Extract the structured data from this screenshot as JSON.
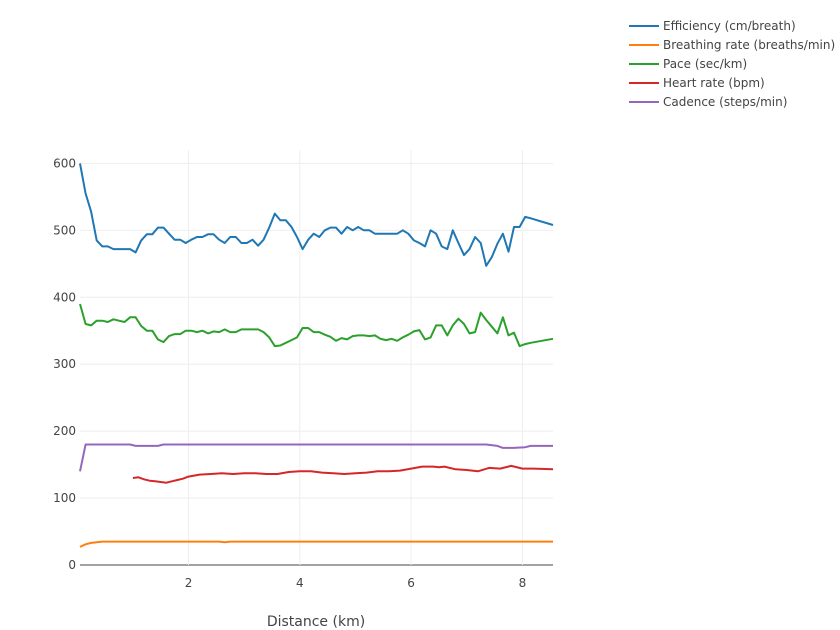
{
  "chart_data": {
    "type": "line",
    "title": "",
    "xlabel": "Distance (km)",
    "ylabel": "",
    "xlim": [
      0.05,
      8.55
    ],
    "ylim": [
      0,
      620
    ],
    "xticks": [
      2,
      4,
      6,
      8
    ],
    "yticks": [
      0,
      100,
      200,
      300,
      400,
      500,
      600
    ],
    "grid": true,
    "legend_position": "top-right",
    "series": [
      {
        "name": "Efficiency (cm/breath)",
        "color": "#1f77b4",
        "x": [
          0.05,
          0.15,
          0.25,
          0.35,
          0.45,
          0.55,
          0.65,
          0.75,
          0.85,
          0.95,
          1.05,
          1.15,
          1.25,
          1.35,
          1.45,
          1.55,
          1.65,
          1.75,
          1.85,
          1.95,
          2.05,
          2.15,
          2.25,
          2.35,
          2.45,
          2.55,
          2.65,
          2.75,
          2.85,
          2.95,
          3.05,
          3.15,
          3.25,
          3.35,
          3.45,
          3.55,
          3.65,
          3.75,
          3.85,
          3.95,
          4.05,
          4.15,
          4.25,
          4.35,
          4.45,
          4.55,
          4.65,
          4.75,
          4.85,
          4.95,
          5.05,
          5.15,
          5.25,
          5.35,
          5.45,
          5.55,
          5.65,
          5.75,
          5.85,
          5.95,
          6.05,
          6.15,
          6.25,
          6.35,
          6.45,
          6.55,
          6.65,
          6.75,
          6.85,
          6.95,
          7.05,
          7.15,
          7.25,
          7.35,
          7.45,
          7.55,
          7.65,
          7.75,
          7.85,
          7.95,
          8.05,
          8.15,
          8.55
        ],
        "y": [
          600,
          555,
          528,
          485,
          476,
          476,
          472,
          472,
          472,
          472,
          467,
          485,
          494,
          494,
          504,
          504,
          495,
          486,
          486,
          481,
          486,
          490,
          490,
          494,
          494,
          486,
          481,
          490,
          490,
          481,
          481,
          486,
          477,
          486,
          504,
          525,
          515,
          515,
          505,
          490,
          472,
          486,
          495,
          490,
          500,
          504,
          504,
          495,
          505,
          500,
          505,
          500,
          500,
          495,
          495,
          495,
          495,
          495,
          500,
          495,
          485,
          481,
          476,
          500,
          495,
          476,
          472,
          500,
          481,
          463,
          472,
          490,
          481,
          447,
          460,
          480,
          495,
          468,
          505,
          505,
          520,
          518,
          508
        ]
      },
      {
        "name": "Breathing rate (breaths/min)",
        "color": "#ff7f0e",
        "x": [
          0.05,
          0.15,
          0.25,
          0.35,
          0.45,
          0.55,
          1.05,
          1.55,
          2.05,
          2.55,
          2.65,
          2.75,
          3.05,
          3.55,
          4.05,
          4.55,
          5.05,
          5.55,
          6.05,
          6.55,
          7.05,
          7.55,
          8.05,
          8.55
        ],
        "y": [
          27,
          31,
          33,
          34,
          35,
          35,
          35,
          35,
          35,
          35,
          34,
          35,
          35,
          35,
          35,
          35,
          35,
          35,
          35,
          35,
          35,
          35,
          35,
          35
        ]
      },
      {
        "name": "Pace (sec/km)",
        "color": "#2ca02c",
        "x": [
          0.05,
          0.15,
          0.25,
          0.35,
          0.45,
          0.55,
          0.65,
          0.75,
          0.85,
          0.95,
          1.05,
          1.15,
          1.25,
          1.35,
          1.45,
          1.55,
          1.65,
          1.75,
          1.85,
          1.95,
          2.05,
          2.15,
          2.25,
          2.35,
          2.45,
          2.55,
          2.65,
          2.75,
          2.85,
          2.95,
          3.05,
          3.15,
          3.25,
          3.35,
          3.45,
          3.55,
          3.65,
          3.75,
          3.85,
          3.95,
          4.05,
          4.15,
          4.25,
          4.35,
          4.45,
          4.55,
          4.65,
          4.75,
          4.85,
          4.95,
          5.05,
          5.15,
          5.25,
          5.35,
          5.45,
          5.55,
          5.65,
          5.75,
          5.85,
          5.95,
          6.05,
          6.15,
          6.25,
          6.35,
          6.45,
          6.55,
          6.65,
          6.75,
          6.85,
          6.95,
          7.05,
          7.15,
          7.25,
          7.35,
          7.45,
          7.55,
          7.65,
          7.75,
          7.85,
          7.95,
          8.05,
          8.15,
          8.55
        ],
        "y": [
          390,
          360,
          358,
          365,
          365,
          363,
          367,
          365,
          363,
          370,
          370,
          357,
          350,
          350,
          337,
          333,
          342,
          345,
          345,
          350,
          350,
          348,
          350,
          346,
          349,
          348,
          352,
          348,
          348,
          352,
          352,
          352,
          352,
          348,
          340,
          327,
          328,
          332,
          336,
          340,
          354,
          354,
          348,
          348,
          344,
          341,
          335,
          339,
          337,
          342,
          343,
          343,
          342,
          343,
          338,
          336,
          338,
          335,
          340,
          344,
          349,
          351,
          337,
          340,
          358,
          358,
          343,
          358,
          368,
          360,
          346,
          348,
          377,
          366,
          356,
          346,
          370,
          343,
          347,
          327,
          330,
          332,
          338
        ]
      },
      {
        "name": "Heart rate (bpm)",
        "color": "#d62728",
        "x": [
          1.0,
          1.1,
          1.2,
          1.3,
          1.4,
          1.5,
          1.6,
          1.7,
          1.8,
          1.9,
          2.0,
          2.2,
          2.4,
          2.6,
          2.8,
          3.0,
          3.2,
          3.4,
          3.6,
          3.8,
          4.0,
          4.2,
          4.4,
          4.6,
          4.8,
          5.0,
          5.2,
          5.4,
          5.6,
          5.8,
          6.0,
          6.2,
          6.4,
          6.5,
          6.6,
          6.8,
          7.0,
          7.2,
          7.4,
          7.6,
          7.8,
          8.0,
          8.2,
          8.55
        ],
        "y": [
          130,
          131,
          128,
          126,
          125,
          124,
          123,
          125,
          127,
          129,
          132,
          135,
          136,
          137,
          136,
          137,
          137,
          136,
          136,
          139,
          140,
          140,
          138,
          137,
          136,
          137,
          138,
          140,
          140,
          141,
          144,
          147,
          147,
          146,
          147,
          143,
          142,
          140,
          145,
          144,
          148,
          144,
          144,
          143
        ]
      },
      {
        "name": "Cadence (steps/min)",
        "color": "#9467bd",
        "x": [
          0.05,
          0.15,
          0.25,
          0.35,
          0.45,
          0.55,
          0.75,
          0.95,
          1.05,
          1.25,
          1.45,
          1.55,
          1.75,
          2.05,
          2.35,
          2.55,
          2.85,
          3.05,
          3.35,
          3.55,
          3.85,
          4.05,
          4.35,
          4.55,
          4.85,
          5.05,
          5.35,
          5.55,
          5.85,
          6.05,
          6.35,
          6.55,
          6.85,
          7.05,
          7.35,
          7.55,
          7.65,
          7.85,
          8.05,
          8.15,
          8.55
        ],
        "y": [
          140,
          180,
          180,
          180,
          180,
          180,
          180,
          180,
          178,
          178,
          178,
          180,
          180,
          180,
          180,
          180,
          180,
          180,
          180,
          180,
          180,
          180,
          180,
          180,
          180,
          180,
          180,
          180,
          180,
          180,
          180,
          180,
          180,
          180,
          180,
          178,
          175,
          175,
          176,
          178,
          178
        ]
      }
    ]
  }
}
